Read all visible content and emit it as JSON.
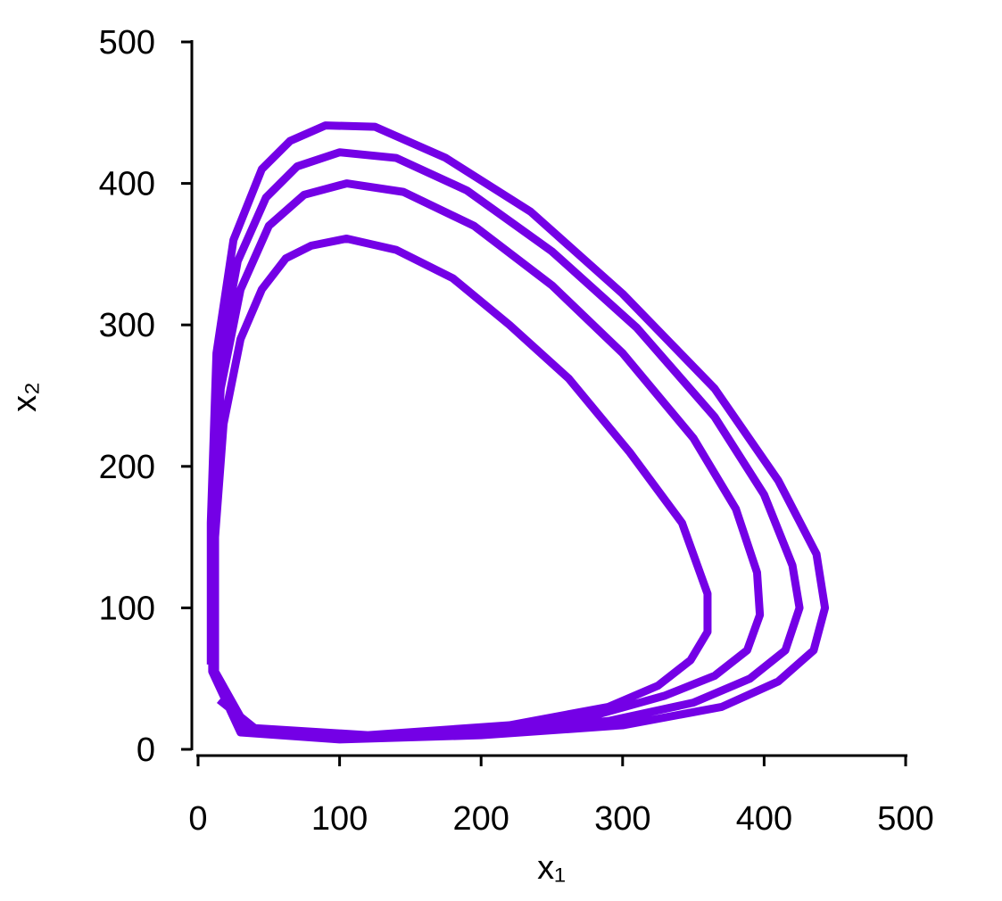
{
  "chart_data": {
    "type": "line",
    "xlabel": "x₁",
    "ylabel": "x₂",
    "xlim": [
      0,
      500
    ],
    "ylim": [
      0,
      500
    ],
    "xticks": [
      0,
      100,
      200,
      300,
      400,
      500
    ],
    "yticks": [
      0,
      100,
      200,
      300,
      400,
      500
    ],
    "series": [
      {
        "color": "#7400e6",
        "x": [
          9,
          9,
          13,
          25,
          45,
          65,
          90,
          125,
          175,
          235,
          300,
          365,
          410,
          437,
          443,
          435,
          410,
          370,
          300,
          200,
          100,
          30,
          10,
          10,
          14,
          28,
          48,
          70,
          100,
          140,
          190,
          250,
          310,
          365,
          400,
          420,
          425,
          415,
          390,
          350,
          290,
          200,
          110,
          35,
          11,
          11,
          16,
          30,
          50,
          75,
          105,
          145,
          195,
          250,
          300,
          350,
          380,
          395,
          397,
          388,
          365,
          330,
          280,
          200,
          110,
          35,
          12,
          12,
          18,
          30,
          45,
          62,
          80,
          105,
          140,
          180,
          220,
          262,
          305,
          342,
          360,
          360,
          348,
          325,
          290,
          220,
          120,
          40,
          15
        ],
        "values": [
          60,
          160,
          280,
          360,
          410,
          430,
          441,
          440,
          418,
          380,
          322,
          255,
          190,
          138,
          100,
          70,
          48,
          30,
          17,
          10,
          7,
          12,
          55,
          160,
          270,
          345,
          390,
          412,
          422,
          418,
          395,
          352,
          298,
          235,
          180,
          130,
          100,
          70,
          50,
          33,
          20,
          12,
          8,
          13,
          55,
          160,
          255,
          325,
          370,
          392,
          400,
          394,
          370,
          328,
          280,
          220,
          170,
          125,
          95,
          70,
          52,
          38,
          24,
          14,
          9,
          14,
          55,
          150,
          230,
          290,
          325,
          347,
          356,
          361,
          353,
          333,
          300,
          262,
          210,
          160,
          110,
          83,
          63,
          45,
          30,
          17,
          10,
          15,
          35
        ]
      }
    ]
  }
}
